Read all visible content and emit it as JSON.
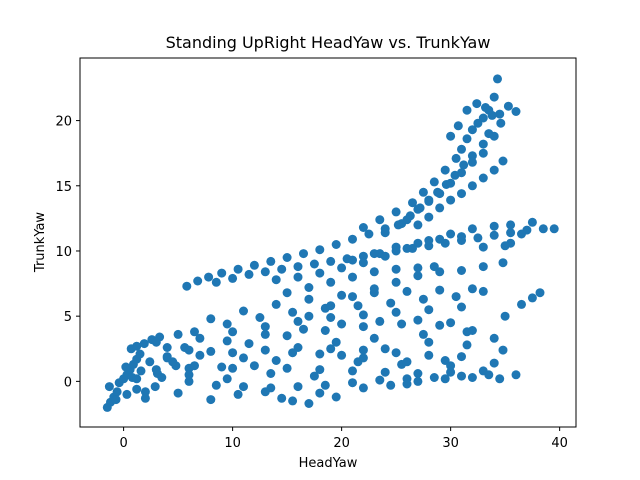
{
  "chart_data": {
    "type": "scatter",
    "title": "Standing UpRight HeadYaw vs. TrunkYaw",
    "xlabel": "HeadYaw",
    "ylabel": "TrunkYaw",
    "xlim": [
      -4,
      41.5
    ],
    "ylim": [
      -3.5,
      24.8
    ],
    "xticks": [
      0,
      10,
      20,
      30,
      40
    ],
    "yticks": [
      0,
      5,
      10,
      15,
      20
    ],
    "grid": false,
    "marker_color": "#1f77b4",
    "series": [
      {
        "points": [
          [
            -1.5,
            -2.0
          ],
          [
            -1.2,
            -1.6
          ],
          [
            -0.9,
            -1.2
          ],
          [
            -0.6,
            -0.8
          ],
          [
            -1.3,
            -0.4
          ],
          [
            -0.4,
            -0.1
          ],
          [
            0.0,
            0.2
          ],
          [
            0.3,
            0.5
          ],
          [
            0.6,
            0.9
          ],
          [
            0.9,
            1.3
          ],
          [
            1.2,
            1.7
          ],
          [
            1.5,
            2.1
          ],
          [
            0.7,
            2.5
          ],
          [
            1.2,
            2.7
          ],
          [
            1.9,
            2.9
          ],
          [
            2.6,
            3.2
          ],
          [
            3.3,
            3.4
          ],
          [
            -0.7,
            -1.4
          ],
          [
            0.3,
            -1.0
          ],
          [
            1.2,
            -0.6
          ],
          [
            2.0,
            -1.3
          ],
          [
            2.9,
            -0.4
          ],
          [
            0.2,
            1.1
          ],
          [
            0.8,
            0.3
          ],
          [
            1.6,
            0.8
          ],
          [
            2.4,
            1.5
          ],
          [
            3.1,
            0.6
          ],
          [
            4.0,
            1.9
          ],
          [
            4.8,
            1.2
          ],
          [
            5.6,
            2.6
          ],
          [
            1.2,
            0.2
          ],
          [
            3.5,
            0.3
          ],
          [
            6.0,
            0.0
          ],
          [
            8.5,
            -0.3
          ],
          [
            11.0,
            -0.4
          ],
          [
            13.5,
            -0.5
          ],
          [
            16.0,
            -0.4
          ],
          [
            18.5,
            -0.3
          ],
          [
            21.0,
            -0.1
          ],
          [
            23.5,
            0.1
          ],
          [
            26.0,
            0.2
          ],
          [
            28.5,
            0.3
          ],
          [
            31.0,
            0.4
          ],
          [
            33.5,
            0.5
          ],
          [
            36.0,
            0.5
          ],
          [
            2.0,
            -0.8
          ],
          [
            5.0,
            -0.9
          ],
          [
            8.0,
            -1.4
          ],
          [
            10.5,
            -1.0
          ],
          [
            13.0,
            -0.8
          ],
          [
            15.5,
            -1.5
          ],
          [
            17.0,
            -1.7
          ],
          [
            19.5,
            -1.2
          ],
          [
            22.0,
            -0.5
          ],
          [
            24.5,
            -0.3
          ],
          [
            27.0,
            0.0
          ],
          [
            29.5,
            0.2
          ],
          [
            32.0,
            0.3
          ],
          [
            34.5,
            0.2
          ],
          [
            3.0,
            0.9
          ],
          [
            6.0,
            1.0
          ],
          [
            9.0,
            1.1
          ],
          [
            12.0,
            1.2
          ],
          [
            15.0,
            1.0
          ],
          [
            18.0,
            0.9
          ],
          [
            21.0,
            0.8
          ],
          [
            24.0,
            0.7
          ],
          [
            27.0,
            0.6
          ],
          [
            30.0,
            0.7
          ],
          [
            33.0,
            0.8
          ],
          [
            4.0,
            1.8
          ],
          [
            7.0,
            2.0
          ],
          [
            10.0,
            2.2
          ],
          [
            13.0,
            2.4
          ],
          [
            16.0,
            2.6
          ],
          [
            19.0,
            2.5
          ],
          [
            22.0,
            2.4
          ],
          [
            25.0,
            2.2
          ],
          [
            28.0,
            2.0
          ],
          [
            31.0,
            1.9
          ],
          [
            6.0,
            0.5
          ],
          [
            9.5,
            0.2
          ],
          [
            13.5,
            0.6
          ],
          [
            17.5,
            0.4
          ],
          [
            21.5,
            1.5
          ],
          [
            25.5,
            1.3
          ],
          [
            29.5,
            1.6
          ],
          [
            14.5,
            -1.3
          ],
          [
            18.0,
            -0.9
          ],
          [
            26.0,
            -0.2
          ],
          [
            3.0,
            3.0
          ],
          [
            6.5,
            3.8
          ],
          [
            9.5,
            4.4
          ],
          [
            12.5,
            4.9
          ],
          [
            15.5,
            5.3
          ],
          [
            18.5,
            5.6
          ],
          [
            21.5,
            5.8
          ],
          [
            24.5,
            6.0
          ],
          [
            27.5,
            6.3
          ],
          [
            30.5,
            6.5
          ],
          [
            33.0,
            6.9
          ],
          [
            4.0,
            2.6
          ],
          [
            7.0,
            3.3
          ],
          [
            10.0,
            3.8
          ],
          [
            13.0,
            4.2
          ],
          [
            16.0,
            4.6
          ],
          [
            19.0,
            4.9
          ],
          [
            22.0,
            5.1
          ],
          [
            25.0,
            5.3
          ],
          [
            28.0,
            5.5
          ],
          [
            31.0,
            5.7
          ],
          [
            5.0,
            3.6
          ],
          [
            8.0,
            4.8
          ],
          [
            11.0,
            5.4
          ],
          [
            14.0,
            5.9
          ],
          [
            17.0,
            6.3
          ],
          [
            20.0,
            6.6
          ],
          [
            23.0,
            6.8
          ],
          [
            26.0,
            6.9
          ],
          [
            29.0,
            7.0
          ],
          [
            32.0,
            7.1
          ],
          [
            4.5,
            1.5
          ],
          [
            8.0,
            2.3
          ],
          [
            11.5,
            2.9
          ],
          [
            15.0,
            3.5
          ],
          [
            18.5,
            3.9
          ],
          [
            22.0,
            4.2
          ],
          [
            25.5,
            4.4
          ],
          [
            29.0,
            4.3
          ],
          [
            31.5,
            3.8
          ],
          [
            34.0,
            3.3
          ],
          [
            6.0,
            2.4
          ],
          [
            9.5,
            3.1
          ],
          [
            13.0,
            3.6
          ],
          [
            16.5,
            4.0
          ],
          [
            20.0,
            4.4
          ],
          [
            23.5,
            4.6
          ],
          [
            27.0,
            4.7
          ],
          [
            30.0,
            4.5
          ],
          [
            20.0,
            2.0
          ],
          [
            24.0,
            2.5
          ],
          [
            28.0,
            3.0
          ],
          [
            32.0,
            3.9
          ],
          [
            35.0,
            5.0
          ],
          [
            36.5,
            5.9
          ],
          [
            37.5,
            6.4
          ],
          [
            38.2,
            6.8
          ],
          [
            10.0,
            1.0
          ],
          [
            14.0,
            1.6
          ],
          [
            18.0,
            2.1
          ],
          [
            22.0,
            1.8
          ],
          [
            26.0,
            1.5
          ],
          [
            30.0,
            1.2
          ],
          [
            34.0,
            1.4
          ],
          [
            6.5,
            1.2
          ],
          [
            11.0,
            1.8
          ],
          [
            15.5,
            2.2
          ],
          [
            19.5,
            3.0
          ],
          [
            23.0,
            3.3
          ],
          [
            27.5,
            3.6
          ],
          [
            31.5,
            2.8
          ],
          [
            34.8,
            2.4
          ],
          [
            5.8,
            7.3
          ],
          [
            6.8,
            7.7
          ],
          [
            7.8,
            8.0
          ],
          [
            9.0,
            8.3
          ],
          [
            10.5,
            8.6
          ],
          [
            12.0,
            8.9
          ],
          [
            13.5,
            9.2
          ],
          [
            15.0,
            9.5
          ],
          [
            16.5,
            9.8
          ],
          [
            18.0,
            10.1
          ],
          [
            19.5,
            10.5
          ],
          [
            21.0,
            10.9
          ],
          [
            22.5,
            11.3
          ],
          [
            24.0,
            11.7
          ],
          [
            25.5,
            12.1
          ],
          [
            8.5,
            7.6
          ],
          [
            10.0,
            7.9
          ],
          [
            11.5,
            8.2
          ],
          [
            13.0,
            8.4
          ],
          [
            14.5,
            8.6
          ],
          [
            16.0,
            8.8
          ],
          [
            17.5,
            9.0
          ],
          [
            19.0,
            9.2
          ],
          [
            20.5,
            9.4
          ],
          [
            22.0,
            9.6
          ],
          [
            23.5,
            9.8
          ],
          [
            25.0,
            10.0
          ],
          [
            26.5,
            10.2
          ],
          [
            28.0,
            10.4
          ],
          [
            29.5,
            10.6
          ],
          [
            31.0,
            10.8
          ],
          [
            32.5,
            11.0
          ],
          [
            34.0,
            11.2
          ],
          [
            35.5,
            11.4
          ],
          [
            37.0,
            11.6
          ],
          [
            38.5,
            11.7
          ],
          [
            39.5,
            11.7
          ],
          [
            14.0,
            7.8
          ],
          [
            16.0,
            8.0
          ],
          [
            18.0,
            8.3
          ],
          [
            20.0,
            8.7
          ],
          [
            22.0,
            9.1
          ],
          [
            24.0,
            9.6
          ],
          [
            26.0,
            10.2
          ],
          [
            28.0,
            10.8
          ],
          [
            30.0,
            11.3
          ],
          [
            32.0,
            11.7
          ],
          [
            34.0,
            11.9
          ],
          [
            35.5,
            12.0
          ],
          [
            15.0,
            6.8
          ],
          [
            17.0,
            7.2
          ],
          [
            19.0,
            7.6
          ],
          [
            21.0,
            8.0
          ],
          [
            23.0,
            8.4
          ],
          [
            25.0,
            8.6
          ],
          [
            27.0,
            8.7
          ],
          [
            28.5,
            8.8
          ],
          [
            17.0,
            5.0
          ],
          [
            19.0,
            5.8
          ],
          [
            21.0,
            6.5
          ],
          [
            23.0,
            7.1
          ],
          [
            25.0,
            7.6
          ],
          [
            27.0,
            8.1
          ],
          [
            29.0,
            8.4
          ],
          [
            31.0,
            8.5
          ],
          [
            33.0,
            8.8
          ],
          [
            34.8,
            9.1
          ],
          [
            35.5,
            10.6
          ],
          [
            36.5,
            11.3
          ],
          [
            37.5,
            12.2
          ],
          [
            21.0,
            9.3
          ],
          [
            23.0,
            9.8
          ],
          [
            25.0,
            10.3
          ],
          [
            27.0,
            10.6
          ],
          [
            29.0,
            10.9
          ],
          [
            31.0,
            11.1
          ],
          [
            33.0,
            10.3
          ],
          [
            35.0,
            10.4
          ],
          [
            22.0,
            11.8
          ],
          [
            23.5,
            12.4
          ],
          [
            25.0,
            13.0
          ],
          [
            26.5,
            13.7
          ],
          [
            27.5,
            14.5
          ],
          [
            28.5,
            15.3
          ],
          [
            29.5,
            16.2
          ],
          [
            30.5,
            17.1
          ],
          [
            31.0,
            17.8
          ],
          [
            31.5,
            18.6
          ],
          [
            32.0,
            19.3
          ],
          [
            32.5,
            19.8
          ],
          [
            33.0,
            20.2
          ],
          [
            33.5,
            20.8
          ],
          [
            34.0,
            21.8
          ],
          [
            34.3,
            23.2
          ],
          [
            24.0,
            11.4
          ],
          [
            25.2,
            12.0
          ],
          [
            26.3,
            12.7
          ],
          [
            27.2,
            13.3
          ],
          [
            28.0,
            13.9
          ],
          [
            28.8,
            14.5
          ],
          [
            29.6,
            15.1
          ],
          [
            30.4,
            15.8
          ],
          [
            31.2,
            16.6
          ],
          [
            32.0,
            17.3
          ],
          [
            33.0,
            18.2
          ],
          [
            33.5,
            19.0
          ],
          [
            34.5,
            20.5
          ],
          [
            35.3,
            21.1
          ],
          [
            36.0,
            20.7
          ],
          [
            26.0,
            12.4
          ],
          [
            27.0,
            13.2
          ],
          [
            28.0,
            13.8
          ],
          [
            29.0,
            14.4
          ],
          [
            30.0,
            15.2
          ],
          [
            31.0,
            16.0
          ],
          [
            32.0,
            16.8
          ],
          [
            33.0,
            17.5
          ],
          [
            34.0,
            18.8
          ],
          [
            34.6,
            19.8
          ],
          [
            27.0,
            12.0
          ],
          [
            28.0,
            12.6
          ],
          [
            29.0,
            13.3
          ],
          [
            30.0,
            13.9
          ],
          [
            31.0,
            14.4
          ],
          [
            32.0,
            15.0
          ],
          [
            33.0,
            15.6
          ],
          [
            34.0,
            16.2
          ],
          [
            34.8,
            16.9
          ],
          [
            30.0,
            18.8
          ],
          [
            30.7,
            19.6
          ],
          [
            31.5,
            20.8
          ],
          [
            32.4,
            21.3
          ],
          [
            33.2,
            21.0
          ],
          [
            33.8,
            20.4
          ]
        ]
      }
    ]
  }
}
